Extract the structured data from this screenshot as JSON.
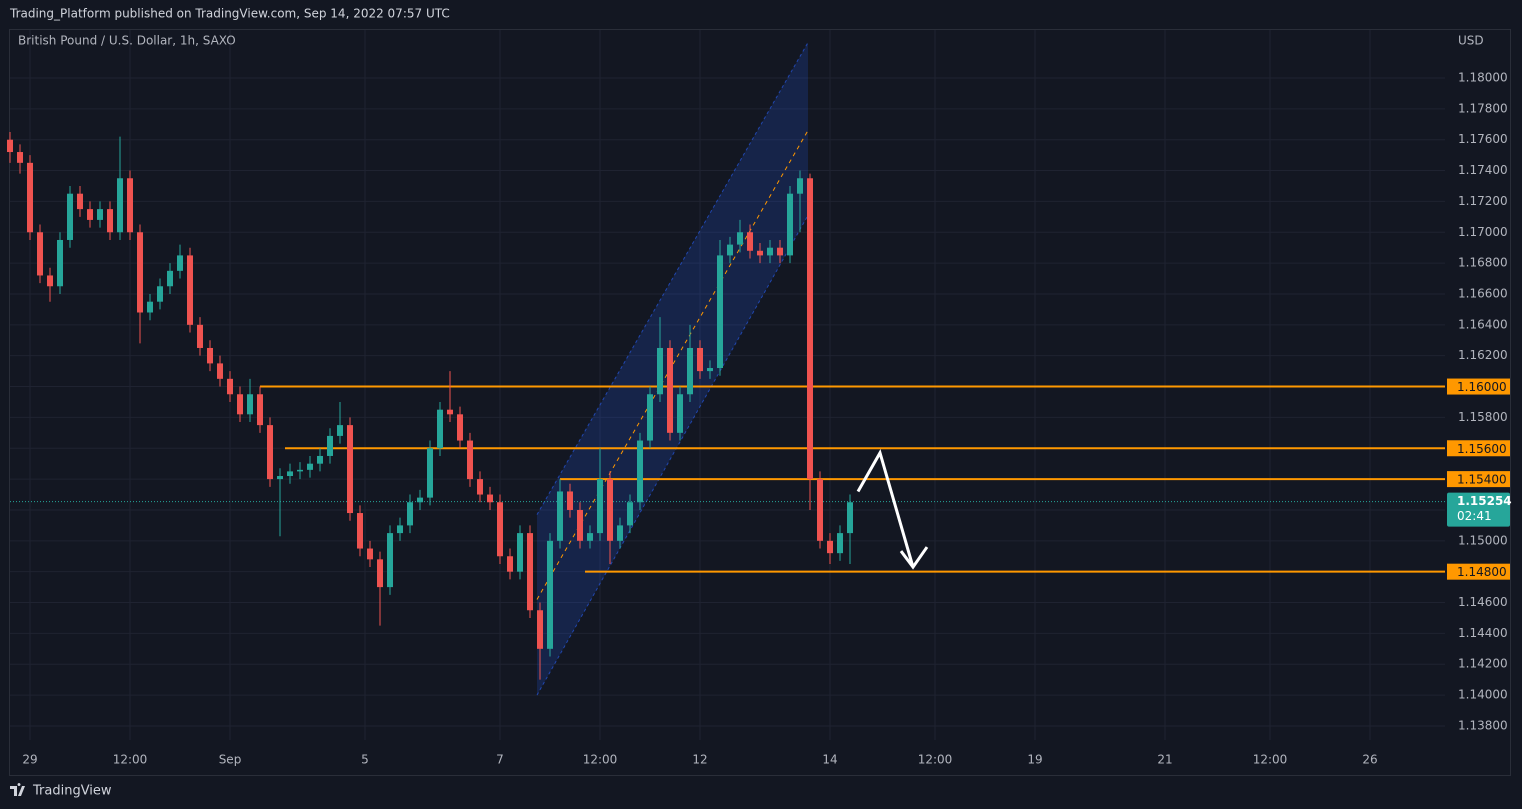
{
  "chart_data": {
    "type": "candlestick",
    "header": "Trading_Platform published on TradingView.com, Sep 14, 2022 07:57 UTC",
    "title": "British Pound / U.S. Dollar, 1h, SAXO",
    "currency": "USD",
    "footer": "TradingView",
    "up_color": "#26a69a",
    "down_color": "#ef5350",
    "grid": true,
    "xlim": [
      0,
      287
    ],
    "ylim": [
      1.13709,
      1.18311
    ],
    "xticks": [
      {
        "value": 4,
        "label": "29"
      },
      {
        "value": 24,
        "label": "12:00"
      },
      {
        "value": 44,
        "label": "Sep"
      },
      {
        "value": 71,
        "label": "5"
      },
      {
        "value": 98,
        "label": "7"
      },
      {
        "value": 118,
        "label": "12:00"
      },
      {
        "value": 138,
        "label": "12"
      },
      {
        "value": 164,
        "label": "14"
      },
      {
        "value": 185,
        "label": "12:00"
      },
      {
        "value": 205,
        "label": "19"
      },
      {
        "value": 231,
        "label": "21"
      },
      {
        "value": 252,
        "label": "12:00"
      },
      {
        "value": 272,
        "label": "26"
      }
    ],
    "yticks": [
      {
        "value": 1.138,
        "label": "1.13800"
      },
      {
        "value": 1.14,
        "label": "1.14000"
      },
      {
        "value": 1.142,
        "label": "1.14200"
      },
      {
        "value": 1.144,
        "label": "1.14400"
      },
      {
        "value": 1.146,
        "label": "1.14600"
      },
      {
        "value": 1.148,
        "label": "1.14800"
      },
      {
        "value": 1.15,
        "label": "1.15000"
      },
      {
        "value": 1.152,
        "label": "1.15200"
      },
      {
        "value": 1.154,
        "label": "1.15400"
      },
      {
        "value": 1.156,
        "label": "1.15600"
      },
      {
        "value": 1.158,
        "label": "1.15800"
      },
      {
        "value": 1.16,
        "label": "1.16000"
      },
      {
        "value": 1.162,
        "label": "1.16200"
      },
      {
        "value": 1.164,
        "label": "1.16400"
      },
      {
        "value": 1.166,
        "label": "1.16600"
      },
      {
        "value": 1.168,
        "label": "1.16800"
      },
      {
        "value": 1.17,
        "label": "1.17000"
      },
      {
        "value": 1.172,
        "label": "1.17200"
      },
      {
        "value": 1.174,
        "label": "1.17400"
      },
      {
        "value": 1.176,
        "label": "1.17600"
      },
      {
        "value": 1.178,
        "label": "1.17800"
      },
      {
        "value": 1.18,
        "label": "1.18000"
      }
    ],
    "x": [
      0,
      2,
      4,
      6,
      8,
      10,
      12,
      14,
      16,
      18,
      20,
      22,
      24,
      26,
      28,
      30,
      32,
      34,
      36,
      38,
      40,
      42,
      44,
      46,
      48,
      50,
      52,
      54,
      56,
      58,
      60,
      62,
      64,
      66,
      68,
      70,
      72,
      74,
      76,
      78,
      80,
      82,
      84,
      86,
      88,
      90,
      92,
      94,
      96,
      98,
      100,
      102,
      104,
      106,
      108,
      110,
      112,
      114,
      116,
      118,
      120,
      122,
      124,
      126,
      128,
      130,
      132,
      134,
      136,
      138,
      140,
      142,
      144,
      146,
      148,
      150,
      152,
      154,
      156,
      158,
      160,
      162,
      164,
      166,
      168
    ],
    "open": [
      1.176,
      1.1752,
      1.1745,
      1.17,
      1.1672,
      1.1665,
      1.1695,
      1.1725,
      1.1715,
      1.1708,
      1.1715,
      1.17,
      1.1735,
      1.17,
      1.1648,
      1.1655,
      1.1665,
      1.1675,
      1.1685,
      1.164,
      1.1625,
      1.1615,
      1.1605,
      1.1595,
      1.1582,
      1.1595,
      1.1575,
      1.154,
      1.1542,
      1.1545,
      1.1546,
      1.155,
      1.1555,
      1.1568,
      1.1575,
      1.1518,
      1.1495,
      1.1488,
      1.147,
      1.1505,
      1.151,
      1.1525,
      1.1528,
      1.156,
      1.1585,
      1.1582,
      1.1565,
      1.154,
      1.153,
      1.1525,
      1.149,
      1.148,
      1.1505,
      1.1455,
      1.143,
      1.15,
      1.1532,
      1.152,
      1.15,
      1.1505,
      1.154,
      1.15,
      1.151,
      1.1525,
      1.1565,
      1.1595,
      1.1625,
      1.157,
      1.1595,
      1.1625,
      1.161,
      1.1612,
      1.1685,
      1.1692,
      1.17,
      1.1688,
      1.1685,
      1.169,
      1.1685,
      1.1725,
      1.1735,
      1.154,
      1.15,
      1.1492,
      1.1505
    ],
    "high": [
      1.1765,
      1.1757,
      1.175,
      1.1705,
      1.1677,
      1.17,
      1.173,
      1.173,
      1.172,
      1.172,
      1.172,
      1.1762,
      1.174,
      1.1705,
      1.166,
      1.167,
      1.168,
      1.1692,
      1.169,
      1.1645,
      1.163,
      1.162,
      1.161,
      1.16,
      1.1605,
      1.16,
      1.158,
      1.1547,
      1.155,
      1.1551,
      1.1555,
      1.156,
      1.1573,
      1.159,
      1.158,
      1.1523,
      1.15,
      1.1493,
      1.151,
      1.1515,
      1.153,
      1.1533,
      1.1565,
      1.159,
      1.161,
      1.1587,
      1.157,
      1.1545,
      1.1535,
      1.153,
      1.1495,
      1.151,
      1.151,
      1.146,
      1.1505,
      1.154,
      1.1537,
      1.1525,
      1.151,
      1.156,
      1.1545,
      1.1515,
      1.153,
      1.157,
      1.16,
      1.1645,
      1.163,
      1.16,
      1.164,
      1.163,
      1.1617,
      1.1695,
      1.1697,
      1.1708,
      1.1705,
      1.1693,
      1.1695,
      1.1695,
      1.173,
      1.174,
      1.1738,
      1.1545,
      1.1505,
      1.151,
      1.153
    ],
    "low": [
      1.1745,
      1.1738,
      1.1695,
      1.1667,
      1.1655,
      1.166,
      1.169,
      1.171,
      1.1703,
      1.1703,
      1.1695,
      1.1695,
      1.1695,
      1.1628,
      1.1643,
      1.165,
      1.166,
      1.167,
      1.1635,
      1.162,
      1.161,
      1.16,
      1.159,
      1.1577,
      1.1577,
      1.157,
      1.1535,
      1.1503,
      1.1537,
      1.154,
      1.1541,
      1.1545,
      1.155,
      1.1563,
      1.1513,
      1.149,
      1.1483,
      1.1445,
      1.1465,
      1.15,
      1.1505,
      1.152,
      1.1523,
      1.1555,
      1.1577,
      1.156,
      1.1535,
      1.1525,
      1.152,
      1.1485,
      1.1475,
      1.1475,
      1.145,
      1.141,
      1.1425,
      1.1495,
      1.1515,
      1.1495,
      1.1495,
      1.15,
      1.1485,
      1.1495,
      1.1505,
      1.152,
      1.156,
      1.159,
      1.1565,
      1.1565,
      1.159,
      1.1605,
      1.1605,
      1.1607,
      1.168,
      1.1687,
      1.1683,
      1.168,
      1.168,
      1.168,
      1.168,
      1.17,
      1.152,
      1.1495,
      1.1485,
      1.1487,
      1.1485
    ],
    "close": [
      1.1752,
      1.1745,
      1.17,
      1.1672,
      1.1665,
      1.1695,
      1.1725,
      1.1715,
      1.1708,
      1.1715,
      1.17,
      1.1735,
      1.17,
      1.1648,
      1.1655,
      1.1665,
      1.1675,
      1.1685,
      1.164,
      1.1625,
      1.1615,
      1.1605,
      1.1595,
      1.1582,
      1.1595,
      1.1575,
      1.154,
      1.1542,
      1.1545,
      1.1546,
      1.155,
      1.1555,
      1.1568,
      1.1575,
      1.1518,
      1.1495,
      1.1488,
      1.147,
      1.1505,
      1.151,
      1.1525,
      1.1528,
      1.156,
      1.1585,
      1.1582,
      1.1565,
      1.154,
      1.153,
      1.1525,
      1.149,
      1.148,
      1.1505,
      1.1455,
      1.143,
      1.15,
      1.1532,
      1.152,
      1.15,
      1.1505,
      1.154,
      1.15,
      1.151,
      1.1525,
      1.1565,
      1.1595,
      1.1625,
      1.157,
      1.1595,
      1.1625,
      1.161,
      1.1612,
      1.1685,
      1.1692,
      1.17,
      1.1688,
      1.1685,
      1.169,
      1.1685,
      1.1725,
      1.1735,
      1.154,
      1.15,
      1.1492,
      1.1505,
      1.1525
    ],
    "levels": [
      {
        "value": 1.16,
        "label": "1.16000",
        "start": 50
      },
      {
        "value": 1.156,
        "label": "1.15600",
        "start": 55
      },
      {
        "value": 1.154,
        "label": "1.15400",
        "start": 110
      },
      {
        "value": 1.148,
        "label": "1.14800",
        "start": 115
      }
    ],
    "level_color": "#ff9800",
    "last_price": {
      "value": 1.15254,
      "label": "1.15254",
      "countdown": "02:41"
    },
    "channel": {
      "x": [
        105.4,
        159.6
      ],
      "upper": [
        1.1517,
        1.1823
      ],
      "middle": [
        1.1462,
        1.1766
      ],
      "lower": [
        1.14,
        1.1711
      ],
      "color": "#2962ff"
    },
    "projection": {
      "x": [
        169.6,
        174,
        180.6
      ],
      "y": [
        1.1532,
        1.1557,
        1.1483
      ],
      "color": "#ffffff"
    }
  }
}
